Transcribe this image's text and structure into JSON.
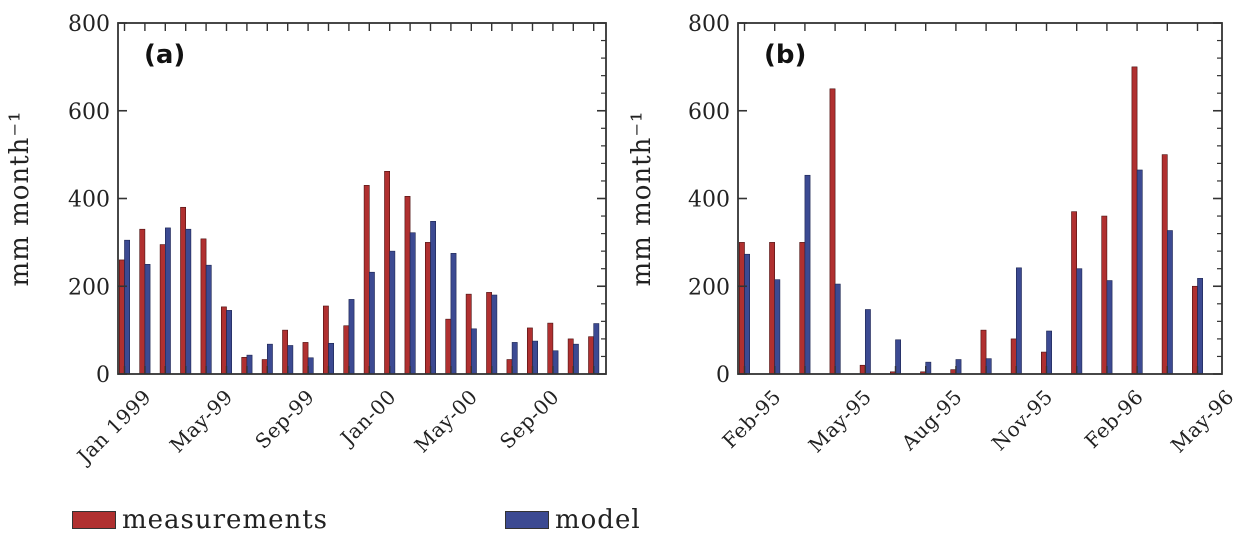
{
  "colors": {
    "measurements": "#b03030",
    "model": "#3c4a92",
    "axis": "#333333"
  },
  "legend": [
    {
      "label": "measurements",
      "color": "#b03030"
    },
    {
      "label": "model",
      "color": "#3c4a92"
    }
  ],
  "chart_data": [
    {
      "type": "bar",
      "panel_label": "(a)",
      "ylabel": "mm month⁻¹",
      "ylim": [
        0,
        800
      ],
      "yticks": [
        0,
        200,
        400,
        600,
        800
      ],
      "categories": [
        "Dec 1998",
        "Jan 1999",
        "Feb 1999",
        "Mar 1999",
        "Apr 1999",
        "May 1999",
        "Jun 1999",
        "Jul 1999",
        "Aug 1999",
        "Sep 1999",
        "Oct 1999",
        "Nov 1999",
        "Dec 1999",
        "Jan 2000",
        "Feb 2000",
        "Mar 2000",
        "Apr 2000",
        "May 2000",
        "Jun 2000",
        "Jul 2000",
        "Aug 2000",
        "Sep 2000",
        "Oct 2000",
        "Nov 2000"
      ],
      "xtick_labels": [
        {
          "label": "Jan 1999",
          "index": 1
        },
        {
          "label": "May-99",
          "index": 5
        },
        {
          "label": "Sep-99",
          "index": 9
        },
        {
          "label": "Jan-00",
          "index": 13
        },
        {
          "label": "May-00",
          "index": 17
        },
        {
          "label": "Sep-00",
          "index": 21
        }
      ],
      "series": [
        {
          "name": "measurements",
          "values": [
            260,
            330,
            295,
            380,
            308,
            153,
            38,
            33,
            100,
            72,
            155,
            110,
            430,
            462,
            405,
            300,
            125,
            182,
            186,
            33,
            105,
            116,
            80,
            85
          ]
        },
        {
          "name": "model",
          "values": [
            305,
            250,
            333,
            330,
            248,
            145,
            43,
            68,
            65,
            37,
            70,
            170,
            232,
            280,
            322,
            348,
            275,
            103,
            180,
            72,
            75,
            53,
            68,
            115
          ]
        }
      ]
    },
    {
      "type": "bar",
      "panel_label": "(b)",
      "ylabel": "mm month⁻¹",
      "ylim": [
        0,
        800
      ],
      "yticks": [
        0,
        200,
        400,
        600,
        800
      ],
      "categories": [
        "Jan 1995",
        "Feb 1995",
        "Mar 1995",
        "Apr 1995",
        "May 1995",
        "Jun 1995",
        "Jul 1995",
        "Aug 1995",
        "Sep 1995",
        "Oct 1995",
        "Nov 1995",
        "Dec 1995",
        "Jan 1996",
        "Feb 1996",
        "Mar 1996",
        "Apr 1996"
      ],
      "xtick_labels": [
        {
          "label": "Feb-95",
          "index": 1
        },
        {
          "label": "May-95",
          "index": 4
        },
        {
          "label": "Aug-95",
          "index": 7
        },
        {
          "label": "Nov-95",
          "index": 10
        },
        {
          "label": "Feb-96",
          "index": 13
        },
        {
          "label": "May-96",
          "index": 16
        }
      ],
      "series": [
        {
          "name": "measurements",
          "values": [
            300,
            300,
            300,
            650,
            20,
            5,
            5,
            10,
            100,
            80,
            50,
            370,
            360,
            700,
            500,
            200
          ]
        },
        {
          "name": "model",
          "values": [
            273,
            215,
            453,
            205,
            147,
            78,
            27,
            33,
            35,
            242,
            98,
            240,
            213,
            465,
            327,
            218
          ]
        }
      ]
    }
  ]
}
